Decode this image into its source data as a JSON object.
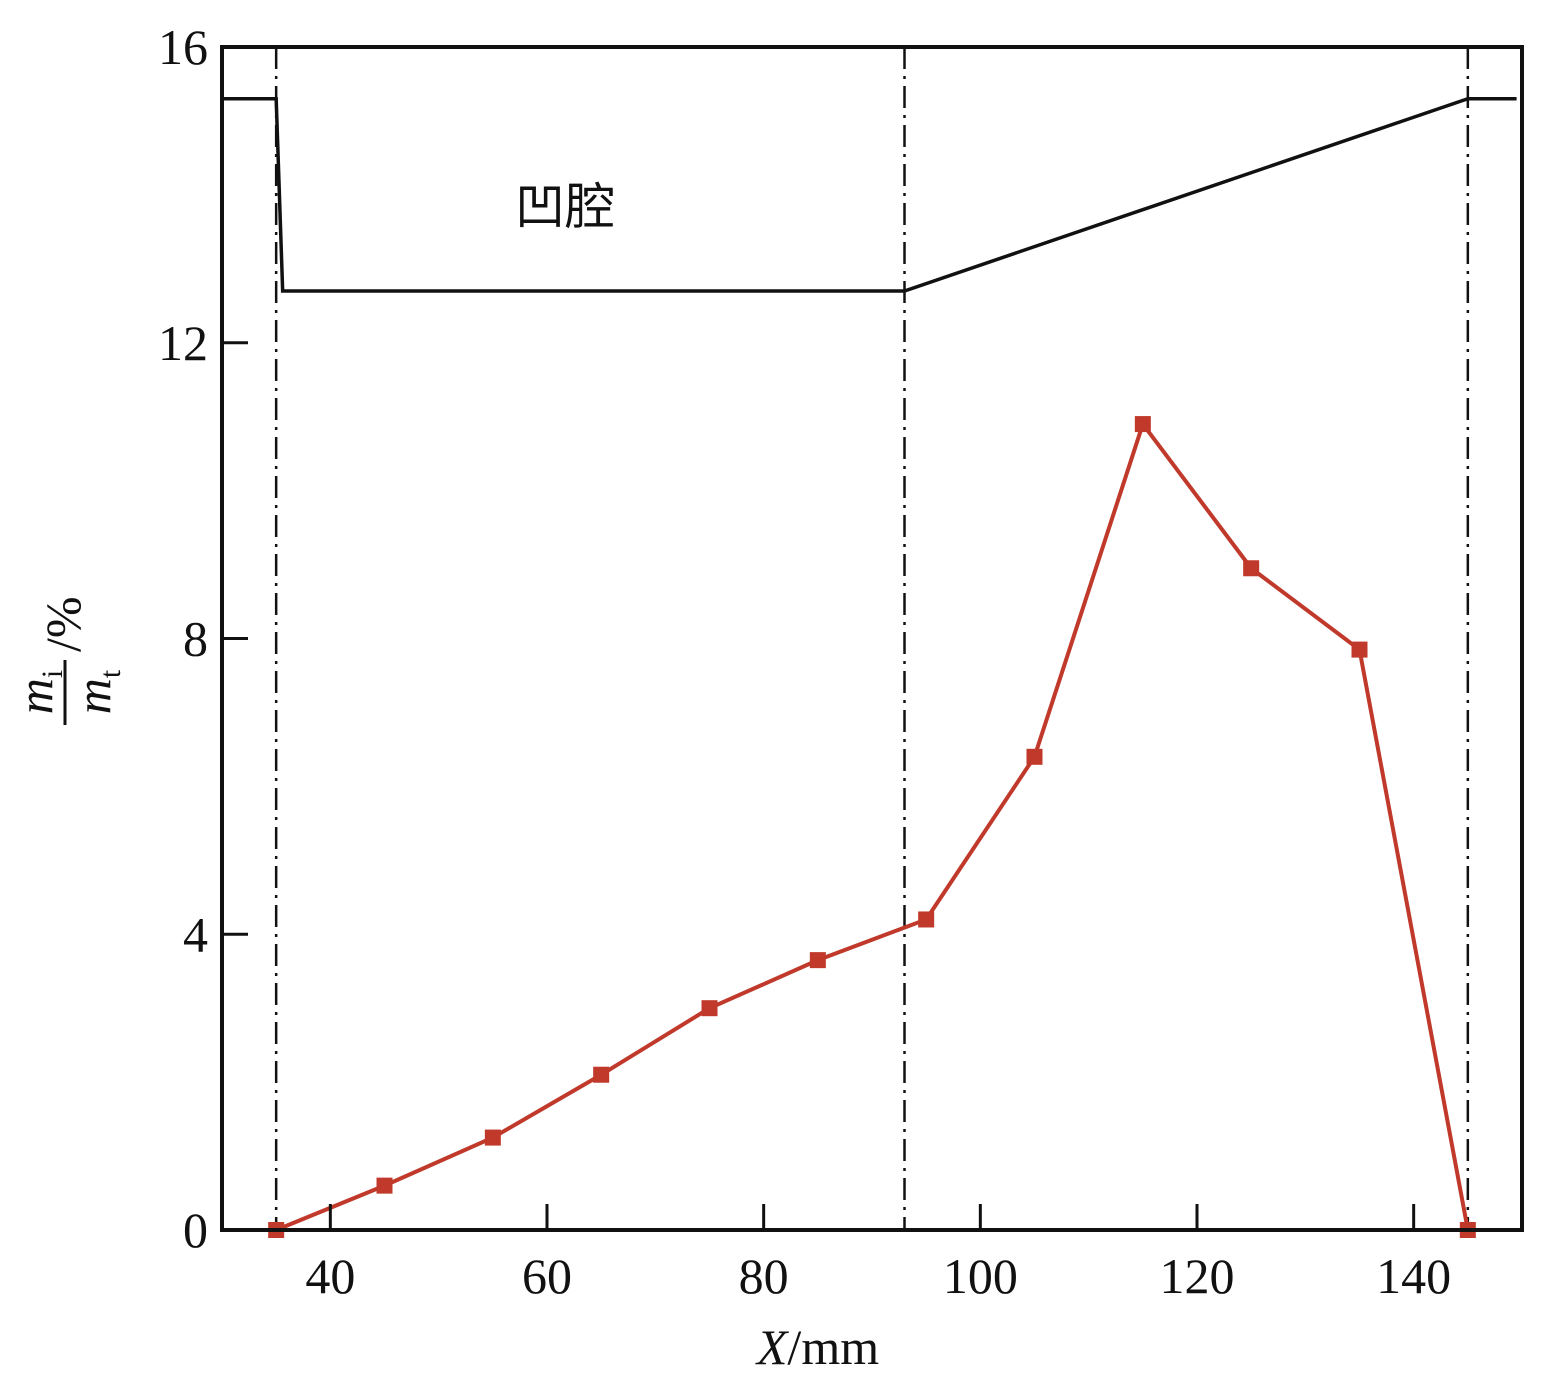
{
  "chart_data": {
    "type": "line",
    "xlabel": {
      "italic": "X",
      "rest": "/mm"
    },
    "ylabel": {
      "num_main": "m",
      "num_sub": "i",
      "den_main": "m",
      "den_sub": "t",
      "suffix": "/%"
    },
    "xlim": [
      30,
      150
    ],
    "ylim": [
      0,
      16
    ],
    "xticks": [
      40,
      60,
      80,
      100,
      120,
      140
    ],
    "yticks": [
      0,
      4,
      8,
      12,
      16
    ],
    "annotation": "凹腔",
    "vlines": [
      35,
      93,
      145
    ],
    "series": [
      {
        "color": "#c0392b",
        "marker": "square",
        "x": [
          35,
          45,
          55,
          65,
          75,
          85,
          95,
          105,
          115,
          125,
          135,
          145
        ],
        "y": [
          0,
          0.6,
          1.25,
          2.1,
          3.0,
          3.65,
          4.2,
          6.4,
          10.9,
          8.95,
          7.85,
          0
        ]
      }
    ],
    "profile": {
      "color": "#111111",
      "x": [
        30,
        35,
        35.6,
        93,
        145,
        149.5
      ],
      "y": [
        15.3,
        15.3,
        12.7,
        12.7,
        15.3,
        15.3
      ]
    }
  }
}
